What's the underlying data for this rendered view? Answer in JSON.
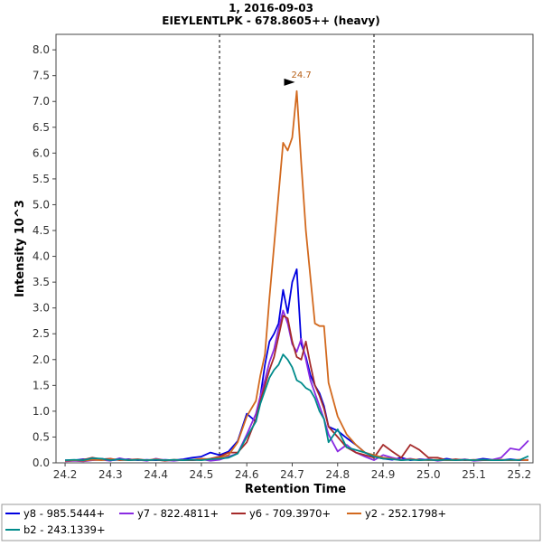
{
  "chart_data": {
    "type": "line",
    "title": "1, 2016-09-03",
    "subtitle": "EIEYLENTLPK - 678.8605++ (heavy)",
    "xlabel": "Retention Time",
    "ylabel": "Intensity 10^3",
    "xlim": [
      24.18,
      25.23
    ],
    "ylim": [
      0,
      8.3
    ],
    "x_ticks": [
      "24.2",
      "24.3",
      "24.4",
      "24.5",
      "24.6",
      "24.7",
      "24.8",
      "24.9",
      "25.0",
      "25.1",
      "25.2"
    ],
    "y_ticks": [
      "0.0",
      "0.5",
      "1.0",
      "1.5",
      "2.0",
      "2.5",
      "3.0",
      "3.5",
      "4.0",
      "4.5",
      "5.0",
      "5.5",
      "6.0",
      "6.5",
      "7.0",
      "7.5",
      "8.0"
    ],
    "grid": false,
    "legend_position": "bottom",
    "integration_bounds": [
      24.54,
      24.88
    ],
    "peak_annotation": {
      "x": 24.71,
      "y": 7.2,
      "label": "24.7"
    },
    "series": [
      {
        "name": "y8 - 985.5444+",
        "color": "#0000e0",
        "x": [
          24.2,
          24.22,
          24.24,
          24.26,
          24.28,
          24.3,
          24.32,
          24.34,
          24.36,
          24.38,
          24.4,
          24.42,
          24.44,
          24.46,
          24.48,
          24.5,
          24.52,
          24.54,
          24.56,
          24.58,
          24.6,
          24.62,
          24.63,
          24.64,
          24.65,
          24.66,
          24.67,
          24.68,
          24.69,
          24.7,
          24.71,
          24.72,
          24.73,
          24.74,
          24.75,
          24.76,
          24.77,
          24.78,
          24.8,
          24.82,
          24.84,
          24.86,
          24.88,
          24.9,
          24.92,
          24.94,
          24.96,
          24.98,
          25.0,
          25.02,
          25.04,
          25.06,
          25.08,
          25.1,
          25.12,
          25.14,
          25.16,
          25.18,
          25.2,
          25.22
        ],
        "values": [
          0.05,
          0.05,
          0.07,
          0.06,
          0.08,
          0.05,
          0.06,
          0.07,
          0.05,
          0.06,
          0.05,
          0.06,
          0.05,
          0.07,
          0.1,
          0.12,
          0.2,
          0.15,
          0.22,
          0.42,
          0.95,
          0.8,
          1.3,
          1.9,
          2.35,
          2.5,
          2.7,
          3.35,
          2.9,
          3.5,
          3.75,
          2.3,
          2.05,
          1.7,
          1.5,
          1.35,
          1.1,
          0.7,
          0.62,
          0.48,
          0.35,
          0.2,
          0.12,
          0.08,
          0.06,
          0.1,
          0.05,
          0.07,
          0.06,
          0.05,
          0.08,
          0.05,
          0.06,
          0.05,
          0.08,
          0.06,
          0.05,
          0.07,
          0.05,
          0.06
        ]
      },
      {
        "name": "y7 - 822.4811+",
        "color": "#8a2be2",
        "x": [
          24.2,
          24.22,
          24.24,
          24.26,
          24.28,
          24.3,
          24.32,
          24.34,
          24.36,
          24.38,
          24.4,
          24.42,
          24.44,
          24.46,
          24.48,
          24.5,
          24.52,
          24.54,
          24.56,
          24.58,
          24.6,
          24.62,
          24.63,
          24.64,
          24.65,
          24.66,
          24.67,
          24.68,
          24.69,
          24.7,
          24.71,
          24.72,
          24.73,
          24.74,
          24.75,
          24.76,
          24.77,
          24.78,
          24.8,
          24.82,
          24.84,
          24.86,
          24.88,
          24.9,
          24.92,
          24.94,
          24.96,
          24.98,
          25.0,
          25.02,
          25.04,
          25.06,
          25.08,
          25.1,
          25.12,
          25.14,
          25.16,
          25.18,
          25.2,
          25.22
        ],
        "values": [
          0.03,
          0.04,
          0.03,
          0.05,
          0.06,
          0.04,
          0.09,
          0.05,
          0.06,
          0.04,
          0.08,
          0.05,
          0.04,
          0.06,
          0.05,
          0.07,
          0.04,
          0.06,
          0.12,
          0.18,
          0.55,
          0.95,
          1.3,
          1.6,
          1.95,
          2.2,
          2.6,
          2.95,
          2.7,
          2.3,
          2.15,
          2.4,
          2.0,
          1.6,
          1.35,
          1.1,
          0.85,
          0.55,
          0.22,
          0.35,
          0.2,
          0.12,
          0.05,
          0.15,
          0.1,
          0.06,
          0.08,
          0.05,
          0.07,
          0.04,
          0.06,
          0.05,
          0.07,
          0.04,
          0.05,
          0.06,
          0.1,
          0.28,
          0.25,
          0.43
        ]
      },
      {
        "name": "y6 - 709.3970+",
        "color": "#a52a2a",
        "x": [
          24.2,
          24.22,
          24.24,
          24.26,
          24.28,
          24.3,
          24.32,
          24.34,
          24.36,
          24.38,
          24.4,
          24.42,
          24.44,
          24.46,
          24.48,
          24.5,
          24.52,
          24.54,
          24.56,
          24.58,
          24.6,
          24.62,
          24.63,
          24.64,
          24.65,
          24.66,
          24.67,
          24.68,
          24.69,
          24.7,
          24.71,
          24.72,
          24.73,
          24.74,
          24.75,
          24.76,
          24.77,
          24.78,
          24.8,
          24.82,
          24.84,
          24.86,
          24.88,
          24.9,
          24.92,
          24.94,
          24.96,
          24.98,
          25.0,
          25.02,
          25.04,
          25.06,
          25.08,
          25.1,
          25.12,
          25.14,
          25.16,
          25.18,
          25.2,
          25.22
        ],
        "values": [
          0.04,
          0.05,
          0.06,
          0.1,
          0.07,
          0.08,
          0.05,
          0.06,
          0.07,
          0.05,
          0.06,
          0.04,
          0.06,
          0.05,
          0.05,
          0.06,
          0.08,
          0.12,
          0.2,
          0.2,
          0.4,
          0.85,
          1.2,
          1.5,
          1.8,
          2.05,
          2.45,
          2.85,
          2.8,
          2.35,
          2.05,
          2.0,
          2.35,
          1.9,
          1.5,
          1.3,
          1.05,
          0.7,
          0.5,
          0.3,
          0.2,
          0.15,
          0.1,
          0.35,
          0.22,
          0.1,
          0.35,
          0.25,
          0.1,
          0.1,
          0.05,
          0.07,
          0.05,
          0.06,
          0.05,
          0.05,
          0.06,
          0.05,
          0.06,
          0.05
        ]
      },
      {
        "name": "y2 - 252.1798+",
        "color": "#d2691e",
        "x": [
          24.2,
          24.22,
          24.24,
          24.26,
          24.28,
          24.3,
          24.32,
          24.34,
          24.36,
          24.38,
          24.4,
          24.42,
          24.44,
          24.46,
          24.48,
          24.5,
          24.52,
          24.54,
          24.56,
          24.58,
          24.6,
          24.62,
          24.63,
          24.64,
          24.65,
          24.66,
          24.67,
          24.68,
          24.69,
          24.7,
          24.71,
          24.72,
          24.73,
          24.74,
          24.75,
          24.76,
          24.77,
          24.78,
          24.8,
          24.82,
          24.84,
          24.86,
          24.88,
          24.9,
          24.92,
          24.94,
          24.96,
          24.98,
          25.0,
          25.02,
          25.04,
          25.06,
          25.08,
          25.1,
          25.12,
          25.14,
          25.16,
          25.18,
          25.2,
          25.22
        ],
        "values": [
          0.04,
          0.05,
          0.04,
          0.06,
          0.05,
          0.07,
          0.06,
          0.05,
          0.06,
          0.05,
          0.07,
          0.05,
          0.06,
          0.05,
          0.06,
          0.08,
          0.07,
          0.1,
          0.15,
          0.4,
          0.9,
          1.2,
          1.7,
          2.1,
          3.2,
          4.2,
          5.2,
          6.2,
          6.05,
          6.3,
          7.2,
          5.8,
          4.5,
          3.6,
          2.7,
          2.65,
          2.65,
          1.55,
          0.9,
          0.55,
          0.35,
          0.2,
          0.15,
          0.1,
          0.08,
          0.05,
          0.07,
          0.06,
          0.05,
          0.06,
          0.05,
          0.05,
          0.06,
          0.05,
          0.06,
          0.05,
          0.06,
          0.05,
          0.06,
          0.05
        ]
      },
      {
        "name": "b2 - 243.1339+",
        "color": "#008b8b",
        "x": [
          24.2,
          24.22,
          24.24,
          24.26,
          24.28,
          24.3,
          24.32,
          24.34,
          24.36,
          24.38,
          24.4,
          24.42,
          24.44,
          24.46,
          24.48,
          24.5,
          24.52,
          24.54,
          24.56,
          24.58,
          24.6,
          24.62,
          24.63,
          24.64,
          24.65,
          24.66,
          24.67,
          24.68,
          24.69,
          24.7,
          24.71,
          24.72,
          24.73,
          24.74,
          24.75,
          24.76,
          24.77,
          24.78,
          24.8,
          24.82,
          24.84,
          24.86,
          24.88,
          24.9,
          24.92,
          24.94,
          24.96,
          24.98,
          25.0,
          25.02,
          25.04,
          25.06,
          25.08,
          25.1,
          25.12,
          25.14,
          25.16,
          25.18,
          25.2,
          25.22
        ],
        "values": [
          0.05,
          0.06,
          0.05,
          0.09,
          0.08,
          0.05,
          0.07,
          0.05,
          0.06,
          0.05,
          0.06,
          0.05,
          0.06,
          0.05,
          0.06,
          0.05,
          0.07,
          0.08,
          0.1,
          0.18,
          0.5,
          0.8,
          1.15,
          1.4,
          1.65,
          1.8,
          1.9,
          2.1,
          2.0,
          1.85,
          1.6,
          1.55,
          1.45,
          1.4,
          1.25,
          1.0,
          0.85,
          0.4,
          0.65,
          0.3,
          0.25,
          0.2,
          0.12,
          0.08,
          0.07,
          0.05,
          0.06,
          0.05,
          0.06,
          0.05,
          0.06,
          0.05,
          0.06,
          0.05,
          0.06,
          0.05,
          0.05,
          0.06,
          0.05,
          0.13
        ]
      }
    ]
  }
}
